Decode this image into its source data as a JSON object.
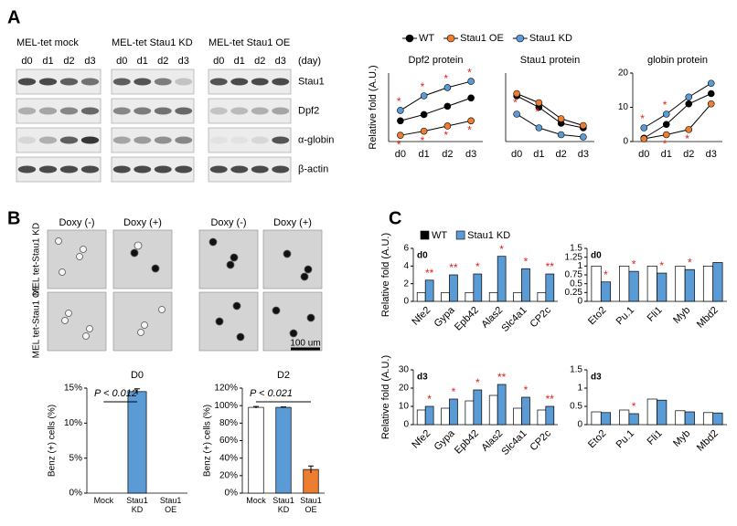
{
  "panels": {
    "a": "A",
    "b": "B",
    "c": "C"
  },
  "blots": {
    "groups": [
      "MEL-tet  mock",
      "MEL-tet  Stau1 KD",
      "MEL-tet  Stau1 OE"
    ],
    "lanes": [
      "d0",
      "d1",
      "d2",
      "d3"
    ],
    "unit": "(day)",
    "rows": [
      "Stau1",
      "Dpf2",
      "α-globin",
      "β-actin"
    ]
  },
  "micrographs": {
    "columns": [
      "Doxy (-)",
      "Doxy (+)"
    ],
    "rows": [
      "MEL tet-Stau1 KD",
      "MEL tet-Stau1 OE"
    ],
    "scale_bar": "100 um"
  },
  "chart_data": [
    {
      "type": "line",
      "title": "Dpf2 protein",
      "ylabel": "Relative fold (A.U.)",
      "categories": [
        "d0",
        "d1",
        "d2",
        "d3"
      ],
      "ylim": [
        0,
        3.3
      ],
      "series": [
        {
          "name": "WT",
          "color": "#000000",
          "values": [
            1.0,
            1.3,
            1.7,
            2.1
          ]
        },
        {
          "name": "Stau1 OE",
          "color": "#ed7d31",
          "values": [
            0.3,
            0.5,
            0.75,
            1.0
          ],
          "marks": [
            "*",
            "*",
            "*",
            "*"
          ]
        },
        {
          "name": "Stau1 KD",
          "color": "#5b9bd5",
          "values": [
            1.5,
            2.2,
            2.6,
            2.9
          ],
          "marks": [
            "*",
            "*",
            "*",
            "*"
          ]
        }
      ]
    },
    {
      "type": "line",
      "title": "Stau1 protein",
      "categories": [
        "d0",
        "d1",
        "d2",
        "d3"
      ],
      "ylim": [
        0,
        1.5
      ],
      "series": [
        {
          "name": "WT",
          "color": "#000000",
          "values": [
            1.0,
            0.75,
            0.4,
            0.3
          ]
        },
        {
          "name": "Stau1 OE",
          "color": "#ed7d31",
          "values": [
            1.05,
            0.85,
            0.5,
            0.35
          ],
          "marks": [
            "*",
            "*",
            null,
            null
          ]
        },
        {
          "name": "Stau1 KD",
          "color": "#5b9bd5",
          "values": [
            0.6,
            0.3,
            0.15,
            0.1
          ]
        }
      ]
    },
    {
      "type": "line",
      "title": "globin protein",
      "categories": [
        "d0",
        "d1",
        "d2",
        "d3"
      ],
      "ylim": [
        0,
        20
      ],
      "yticks": [
        0,
        10,
        20
      ],
      "series": [
        {
          "name": "WT",
          "color": "#000000",
          "values": [
            1,
            5,
            11,
            14
          ]
        },
        {
          "name": "Stau1 OE",
          "color": "#ed7d31",
          "values": [
            0.8,
            2,
            3.5,
            11
          ],
          "marks": [
            null,
            "*",
            "*",
            null
          ]
        },
        {
          "name": "Stau1 KD",
          "color": "#5b9bd5",
          "values": [
            4,
            8,
            13,
            17
          ],
          "marks": [
            "*",
            "*",
            null,
            null
          ]
        }
      ]
    },
    {
      "type": "bar",
      "title": "D0",
      "ylabel": "Benz (+) cells (%)",
      "categories": [
        "Mock",
        "Stau1 KD",
        "Stau1 OE"
      ],
      "values": [
        0,
        14.5,
        0
      ],
      "errors": [
        0,
        0.4,
        0
      ],
      "colors": [
        "#ffffff",
        "#5b9bd5",
        "#ed7d31"
      ],
      "ylim": [
        0,
        15
      ],
      "yticks": [
        {
          "value": 0,
          "label": "0%"
        },
        {
          "value": 5,
          "label": "5%"
        },
        {
          "value": 10,
          "label": "10%"
        },
        {
          "value": 15,
          "label": "15%"
        }
      ],
      "annotation": "P < 0.012"
    },
    {
      "type": "bar",
      "title": "D2",
      "ylabel": "Benz (+) cells (%)",
      "categories": [
        "Mock",
        "Stau1 KD",
        "Stau1 OE"
      ],
      "values": [
        98,
        98,
        27
      ],
      "errors": [
        1,
        0.5,
        4
      ],
      "colors": [
        "#ffffff",
        "#5b9bd5",
        "#ed7d31"
      ],
      "ylim": [
        0,
        120
      ],
      "yticks": [
        {
          "value": 0,
          "label": "0%"
        },
        {
          "value": 20,
          "label": "20%"
        },
        {
          "value": 40,
          "label": "40%"
        },
        {
          "value": 60,
          "label": "60%"
        },
        {
          "value": 80,
          "label": "80%"
        },
        {
          "value": 100,
          "label": "100%"
        },
        {
          "value": 120,
          "label": "120%"
        }
      ],
      "annotation": "P < 0.021"
    },
    {
      "type": "bar",
      "panel_label": "d0",
      "ylabel": "Relative fold (A.U.)",
      "categories": [
        "Nfe2",
        "Gypa",
        "Epb42",
        "Alas2",
        "Slc4a1",
        "CP2c"
      ],
      "ylim": [
        0,
        6
      ],
      "yticks": [
        0,
        2,
        4,
        6
      ],
      "series": [
        {
          "name": "WT",
          "color": "#ffffff",
          "values": [
            1,
            1,
            1,
            1,
            1,
            1
          ]
        },
        {
          "name": "Stau1 KD",
          "color": "#5b9bd5",
          "values": [
            2.4,
            3.0,
            3.1,
            5.1,
            3.7,
            3.1
          ],
          "marks": [
            "**",
            "**",
            "*",
            "*",
            "*",
            "**"
          ]
        }
      ]
    },
    {
      "type": "bar",
      "panel_label": "d0",
      "categories": [
        "Eto2",
        "Pu.1",
        "Fli1",
        "Myb",
        "Mbd2"
      ],
      "ylim": [
        0,
        1.5
      ],
      "yticks": [
        0,
        0.25,
        0.5,
        0.75,
        1,
        1.25,
        1.5
      ],
      "series": [
        {
          "name": "WT",
          "color": "#ffffff",
          "values": [
            1,
            1,
            1,
            1,
            1
          ]
        },
        {
          "name": "Stau1 KD",
          "color": "#5b9bd5",
          "values": [
            0.55,
            0.85,
            0.8,
            0.9,
            1.1
          ],
          "marks": [
            "*",
            "*",
            "*",
            "*",
            null
          ]
        }
      ]
    },
    {
      "type": "bar",
      "panel_label": "d3",
      "ylabel": "Relative fold (A.U.)",
      "categories": [
        "Nfe2",
        "Gypa",
        "Epb42",
        "Alas2",
        "Slc4a1",
        "CP2c"
      ],
      "ylim": [
        0,
        30
      ],
      "yticks": [
        0,
        10,
        20,
        30
      ],
      "series": [
        {
          "name": "WT",
          "color": "#ffffff",
          "values": [
            8,
            9,
            13,
            16,
            9,
            8
          ]
        },
        {
          "name": "Stau1 KD",
          "color": "#5b9bd5",
          "values": [
            10,
            14,
            19,
            22,
            15,
            10
          ],
          "marks": [
            "*",
            "*",
            "*",
            "**",
            "*",
            "**"
          ]
        }
      ]
    },
    {
      "type": "bar",
      "panel_label": "d3",
      "categories": [
        "Eto2",
        "Pu.1",
        "Fli1",
        "Myb",
        "Mbd2"
      ],
      "ylim": [
        0,
        1.5
      ],
      "yticks": [
        0,
        0.5,
        1,
        1.5
      ],
      "series": [
        {
          "name": "WT",
          "color": "#ffffff",
          "values": [
            0.35,
            0.4,
            0.7,
            0.38,
            0.33
          ]
        },
        {
          "name": "Stau1 KD",
          "color": "#5b9bd5",
          "values": [
            0.33,
            0.3,
            0.67,
            0.35,
            0.32
          ],
          "marks": [
            null,
            "*",
            null,
            null,
            null
          ]
        }
      ]
    }
  ]
}
